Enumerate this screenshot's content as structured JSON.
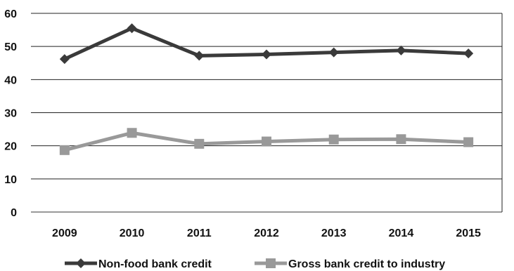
{
  "chart_data": {
    "type": "line",
    "categories": [
      "2009",
      "2010",
      "2011",
      "2012",
      "2013",
      "2014",
      "2015"
    ],
    "ylim": [
      0,
      60
    ],
    "yticks": [
      0,
      10,
      20,
      30,
      40,
      50,
      60
    ],
    "grid": true,
    "legend_position": "bottom",
    "series": [
      {
        "name": "Non-food bank credit",
        "values": [
          46.2,
          55.5,
          47.2,
          47.6,
          48.2,
          48.8,
          47.9
        ],
        "color": "#3a3a3a",
        "marker": "diamond"
      },
      {
        "name": "Gross bank credit to industry",
        "values": [
          18.7,
          23.9,
          20.6,
          21.3,
          21.9,
          22.0,
          21.1
        ],
        "color": "#999999",
        "marker": "square"
      }
    ]
  }
}
